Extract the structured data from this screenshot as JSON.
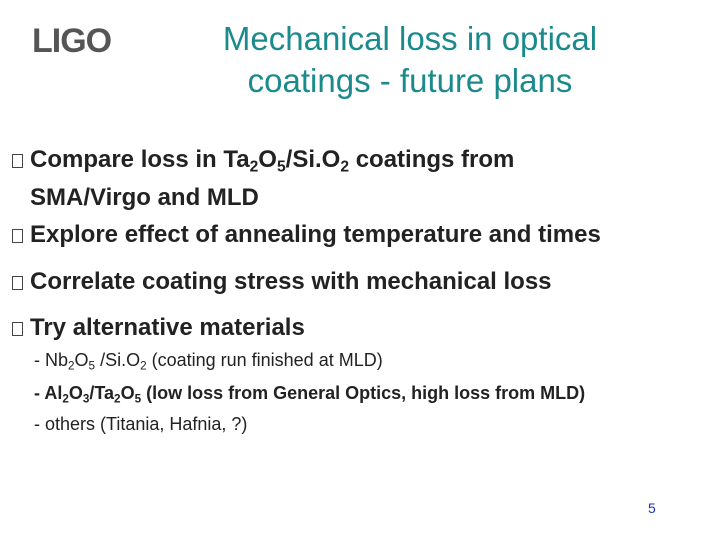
{
  "logo": "LIGO",
  "title": [
    "Mechanical loss in optical",
    "coatings -  future plans"
  ],
  "bullets": [
    {
      "lines": [
        [
          "Compare loss in Ta",
          "2",
          "O",
          "5",
          "/Si.O",
          "2",
          " coatings from"
        ],
        [
          "SMA/Virgo and MLD"
        ]
      ]
    },
    {
      "lines": [
        [
          "Explore effect of annealing temperature and times"
        ]
      ]
    },
    {
      "lines": [
        [
          "Correlate coating stress with mechanical loss"
        ]
      ]
    },
    {
      "lines": [
        [
          "Try alternative materials"
        ]
      ]
    }
  ],
  "sub_items": [
    [
      "- Nb",
      "2",
      "O",
      "5",
      " /Si.O",
      "2",
      " (coating run finished at MLD)"
    ],
    [
      "- Al",
      "2",
      "O",
      "3",
      "/Ta",
      "2",
      "O",
      "5",
      " (low loss from General Optics, high loss from MLD)"
    ],
    [
      "- others (Titania, Hafnia, ?)"
    ]
  ],
  "page_number": "5"
}
